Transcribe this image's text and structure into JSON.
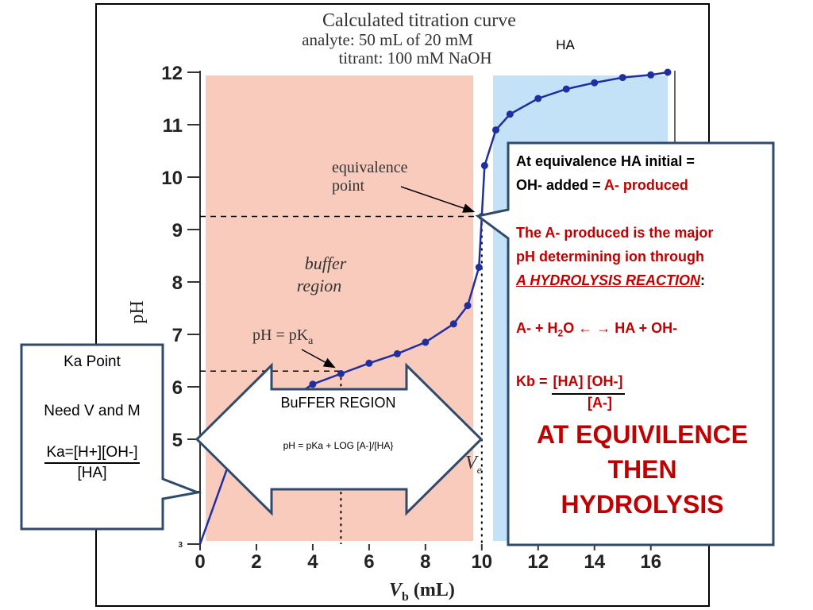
{
  "chart_data": {
    "type": "line",
    "title": "Calculated titration curve",
    "subtitle_lines": [
      "analyte: 50 mL of 20 mM",
      "titrant: 100 mM NaOH"
    ],
    "title_annotation": "HA",
    "xlabel": "V_b (mL)",
    "xlabel_main": "V",
    "xlabel_sub": "b",
    "xlabel_unit": "(mL)",
    "ylabel": "pH",
    "xlim": [
      0,
      16.6
    ],
    "ylim": [
      3,
      12
    ],
    "xticks": [
      0,
      2,
      4,
      6,
      8,
      10,
      12,
      14,
      16
    ],
    "yticks": [
      3,
      4,
      5,
      6,
      7,
      8,
      9,
      10,
      11,
      12
    ],
    "ytick_labels": [
      "3",
      "",
      "5",
      "6",
      "7",
      "8",
      "9",
      "10",
      "11",
      "12"
    ],
    "grid": false,
    "regions": [
      {
        "label_lines": [
          "buffer",
          "region"
        ],
        "x_range": [
          0.2,
          9.7
        ],
        "color": "#f9cbbd"
      },
      {
        "x_range": [
          10.4,
          16.6
        ],
        "color": "#c3e2f7"
      }
    ],
    "x": [
      0,
      1,
      2,
      3,
      4,
      5,
      6,
      7,
      8,
      9,
      9.5,
      9.9,
      10,
      10.1,
      10.5,
      11,
      12,
      13,
      14,
      15,
      16,
      16.6
    ],
    "y": [
      3.0,
      4.5,
      5.2,
      5.7,
      6.05,
      6.25,
      6.45,
      6.63,
      6.85,
      7.2,
      7.55,
      8.28,
      9.25,
      10.22,
      10.9,
      11.2,
      11.5,
      11.68,
      11.8,
      11.9,
      11.95,
      12.0
    ],
    "series": [
      {
        "values_ref": "y"
      }
    ],
    "annotations": [
      {
        "text_lines": [
          "equivalence",
          "point"
        ],
        "target": [
          10,
          9.25
        ]
      },
      {
        "text": "pH = pK",
        "subscript": "a",
        "target": [
          5,
          6.25
        ]
      },
      {
        "text": "V",
        "subscript": "e",
        "target": [
          10,
          4.7
        ]
      }
    ],
    "reference_lines": {
      "equivalence_pH": 9.25,
      "pKa": 6.3,
      "half_equivalence_volume": 5,
      "equivalence_volume": 10
    }
  },
  "buffer_arrow": {
    "title": "BuFFER REGION",
    "formula": "pH = pKa + LOG [A-]/[HA}"
  },
  "ka_callout": {
    "line1": "Ka Point",
    "line2": "Need V and M",
    "formula_num": "Ka=[H+][OH-]",
    "formula_den": "[HA]"
  },
  "hydrolysis_callout": {
    "line1": "At equivalence HA initial =",
    "line2_black": "OH- added = ",
    "line2_red": "A- produced",
    "line3": "The A- produced is the major",
    "line4": "pH determining ion through",
    "line5_underlined": "A HYDROLYSIS REACTION",
    "line5_tail": ":",
    "equation_left": "A- + H",
    "equation_sub": "2",
    "equation_mid": "O",
    "equation_arrows": "← →",
    "equation_right": "HA + OH-",
    "kb_label": "Kb = ",
    "kb_num": "[HA] [OH-]",
    "kb_den": "[A-]",
    "big_line1": "AT EQUIVILENCE",
    "big_line2": "THEN",
    "big_line3": "HYDROLYSIS"
  },
  "colors": {
    "curve": "#1f2fa0",
    "callout_border": "#2f4a6d",
    "buffer_fill": "#f9cbbd",
    "post_eq_fill": "#c3e2f7",
    "accent_red": "#c00000"
  }
}
